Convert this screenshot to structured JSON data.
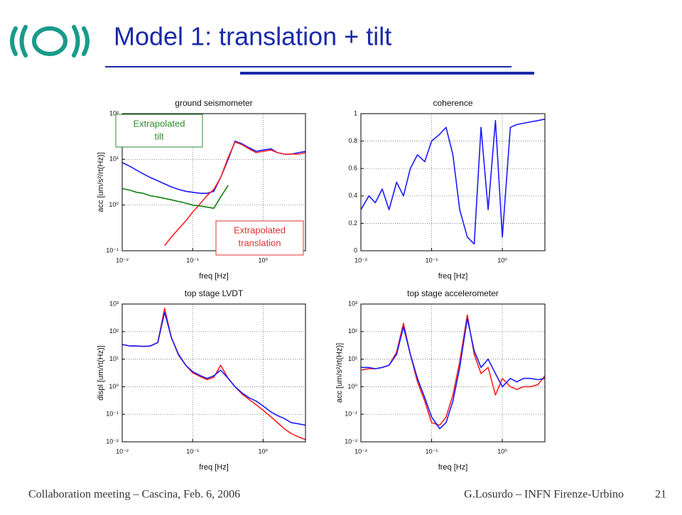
{
  "title": "Model 1: translation + tilt",
  "footer": {
    "left": "Collaboration meeting – Cascina, Feb. 6, 2006",
    "right": "G.Losurdo – INFN Firenze-Urbino",
    "page": "21"
  },
  "chart_data": [
    {
      "type": "line",
      "title": "ground seismometer",
      "xlabel": "freq [Hz]",
      "ylabel": "acc [um/s²/rt(Hz)]",
      "xlog": true,
      "ylog": true,
      "grid": true,
      "xlim": [
        0.01,
        4
      ],
      "ylim": [
        0.1,
        100
      ],
      "xticks": [
        {
          "value": 0.01,
          "label": "10⁻²"
        },
        {
          "value": 0.1,
          "label": "10⁻¹"
        },
        {
          "value": 1,
          "label": "10⁰"
        }
      ],
      "yticks": [
        {
          "value": 0.1,
          "label": "10⁻¹"
        },
        {
          "value": 1,
          "label": "10⁰"
        },
        {
          "value": 10,
          "label": "10¹"
        },
        {
          "value": 100,
          "label": "10²"
        }
      ],
      "x": [
        0.01,
        0.013,
        0.016,
        0.02,
        0.025,
        0.032,
        0.04,
        0.05,
        0.063,
        0.08,
        0.1,
        0.13,
        0.16,
        0.2,
        0.25,
        0.32,
        0.4,
        0.5,
        0.63,
        0.8,
        1,
        1.3,
        1.6,
        2,
        2.5,
        3.2,
        4
      ],
      "series": [
        {
          "color": "#1a1aff",
          "values": [
            8.5,
            7,
            5.8,
            4.8,
            4,
            3.4,
            2.9,
            2.5,
            2.2,
            2,
            1.9,
            1.8,
            1.8,
            2,
            4,
            10,
            25,
            22,
            18,
            15,
            16,
            17,
            14,
            13,
            13,
            14,
            15
          ]
        },
        {
          "color": "#ff2020",
          "values": [
            null,
            null,
            null,
            null,
            null,
            null,
            0.13,
            0.2,
            0.3,
            0.45,
            0.7,
            1.1,
            1.6,
            2.2,
            4,
            11,
            24,
            21,
            17,
            14,
            15,
            16,
            14,
            13,
            13,
            13,
            14
          ]
        },
        {
          "color": "#108010",
          "values": [
            2.3,
            2.1,
            1.9,
            1.8,
            1.6,
            1.5,
            1.4,
            1.3,
            1.2,
            1.1,
            1.0,
            0.95,
            0.9,
            0.85,
            1.5,
            2.7,
            null,
            null,
            null,
            null,
            null,
            null,
            null,
            null,
            null,
            null,
            null
          ]
        }
      ],
      "annotations": [
        {
          "lines": [
            "Extrapolated",
            "tilt"
          ],
          "color": "#2e8b2e"
        },
        {
          "lines": [
            "Extrapolated",
            "translation"
          ],
          "color": "#e03030"
        }
      ]
    },
    {
      "type": "line",
      "title": "coherence",
      "xlabel": "freq [Hz]",
      "xlog": true,
      "ylog": false,
      "grid": true,
      "xlim": [
        0.01,
        4
      ],
      "ylim": [
        0,
        1
      ],
      "xticks": [
        {
          "value": 0.01,
          "label": "10⁻²"
        },
        {
          "value": 0.1,
          "label": "10⁻¹"
        },
        {
          "value": 1,
          "label": "10⁰"
        }
      ],
      "yticks": [
        0,
        0.2,
        0.4,
        0.6,
        0.8,
        1
      ],
      "x": [
        0.01,
        0.013,
        0.016,
        0.02,
        0.025,
        0.032,
        0.04,
        0.05,
        0.063,
        0.08,
        0.1,
        0.13,
        0.16,
        0.2,
        0.25,
        0.32,
        0.4,
        0.5,
        0.63,
        0.8,
        1,
        1.3,
        1.6,
        2,
        2.5,
        3.2,
        4
      ],
      "series": [
        {
          "color": "#1a1aff",
          "values": [
            0.3,
            0.4,
            0.35,
            0.45,
            0.3,
            0.5,
            0.4,
            0.6,
            0.7,
            0.65,
            0.8,
            0.85,
            0.9,
            0.7,
            0.3,
            0.1,
            0.05,
            0.9,
            0.3,
            0.95,
            0.1,
            0.9,
            0.92,
            0.93,
            0.94,
            0.95,
            0.96
          ]
        }
      ]
    },
    {
      "type": "line",
      "title": "top stage LVDT",
      "xlabel": "freq [Hz]",
      "ylabel": "displ [um/rt(Hz)]",
      "xlog": true,
      "ylog": true,
      "grid": true,
      "xlim": [
        0.01,
        4
      ],
      "ylim": [
        0.01,
        1000
      ],
      "xticks": [
        {
          "value": 0.01,
          "label": "10⁻²"
        },
        {
          "value": 0.1,
          "label": "10⁻¹"
        },
        {
          "value": 1,
          "label": "10⁰"
        }
      ],
      "yticks": [
        {
          "value": 0.01,
          "label": "10⁻²"
        },
        {
          "value": 0.1,
          "label": "10⁻¹"
        },
        {
          "value": 1,
          "label": "10⁰"
        },
        {
          "value": 10,
          "label": "10¹"
        },
        {
          "value": 100,
          "label": "10²"
        },
        {
          "value": 1000,
          "label": "10³"
        }
      ],
      "x": [
        0.01,
        0.013,
        0.016,
        0.02,
        0.025,
        0.032,
        0.04,
        0.05,
        0.063,
        0.08,
        0.1,
        0.13,
        0.16,
        0.2,
        0.25,
        0.32,
        0.4,
        0.5,
        0.63,
        0.8,
        1,
        1.3,
        1.6,
        2,
        2.5,
        3.2,
        4
      ],
      "series": [
        {
          "color": "#ff2020",
          "values": [
            34,
            30,
            30,
            29,
            30,
            40,
            700,
            60,
            14,
            6,
            3.2,
            2.3,
            1.8,
            2.2,
            6,
            2,
            1,
            0.55,
            0.35,
            0.22,
            0.14,
            0.08,
            0.05,
            0.03,
            0.02,
            0.015,
            0.012
          ]
        },
        {
          "color": "#1a1aff",
          "values": [
            34,
            30,
            30,
            29,
            30,
            40,
            500,
            60,
            15,
            6,
            3.5,
            2.5,
            2,
            2.5,
            4,
            2,
            1,
            0.6,
            0.4,
            0.3,
            0.2,
            0.12,
            0.09,
            0.07,
            0.05,
            0.045,
            0.04
          ]
        }
      ]
    },
    {
      "type": "line",
      "title": "top stage accelerometer",
      "xlabel": "freq [Hz]",
      "ylabel": "acc [um/s²/rt(Hz)]",
      "xlog": true,
      "ylog": true,
      "grid": true,
      "xlim": [
        0.01,
        4
      ],
      "ylim": [
        0.01,
        1000
      ],
      "xticks": [
        {
          "value": 0.01,
          "label": "10⁻²"
        },
        {
          "value": 0.1,
          "label": "10⁻¹"
        },
        {
          "value": 1,
          "label": "10⁰"
        }
      ],
      "yticks": [
        {
          "value": 0.01,
          "label": "10⁻²"
        },
        {
          "value": 0.1,
          "label": "10⁻¹"
        },
        {
          "value": 1,
          "label": "10⁰"
        },
        {
          "value": 10,
          "label": "10¹"
        },
        {
          "value": 100,
          "label": "10²"
        },
        {
          "value": 1000,
          "label": "10³"
        }
      ],
      "x": [
        0.01,
        0.013,
        0.016,
        0.02,
        0.025,
        0.032,
        0.04,
        0.05,
        0.063,
        0.08,
        0.1,
        0.13,
        0.16,
        0.2,
        0.25,
        0.32,
        0.4,
        0.5,
        0.63,
        0.8,
        1,
        1.3,
        1.6,
        2,
        2.5,
        3.2,
        4
      ],
      "series": [
        {
          "color": "#ff2020",
          "values": [
            4,
            4.5,
            4.5,
            5,
            6,
            18,
            200,
            15,
            1.5,
            0.3,
            0.05,
            0.04,
            0.08,
            0.5,
            8,
            400,
            15,
            3,
            5,
            0.5,
            2,
            1,
            0.8,
            1,
            1,
            1.2,
            2.5
          ]
        },
        {
          "color": "#1a1aff",
          "values": [
            5,
            5,
            4.5,
            5,
            6,
            15,
            150,
            15,
            2,
            0.4,
            0.08,
            0.03,
            0.05,
            0.3,
            5,
            300,
            20,
            5,
            10,
            3,
            1,
            2,
            1.5,
            2,
            2,
            1.8,
            2
          ]
        }
      ]
    }
  ]
}
